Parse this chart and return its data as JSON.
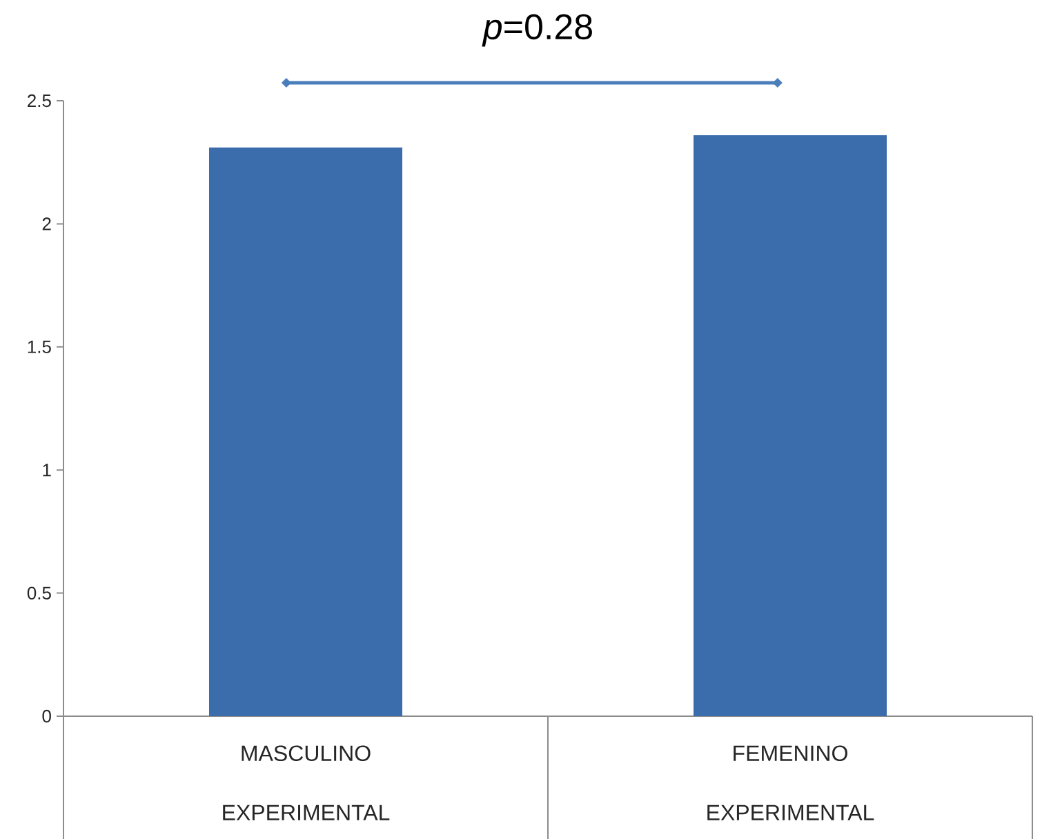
{
  "chart_data": {
    "type": "bar",
    "categories": [
      "MASCULINO EXPERIMENTAL",
      "FEMENINO EXPERIMENTAL"
    ],
    "values": [
      2.31,
      2.36
    ],
    "color": "#3b6cab",
    "ylim": [
      0,
      2.5
    ],
    "yticks": [
      0,
      0.5,
      1,
      1.5,
      2,
      2.5
    ],
    "annotations": [
      "*p*=0.28"
    ]
  }
}
